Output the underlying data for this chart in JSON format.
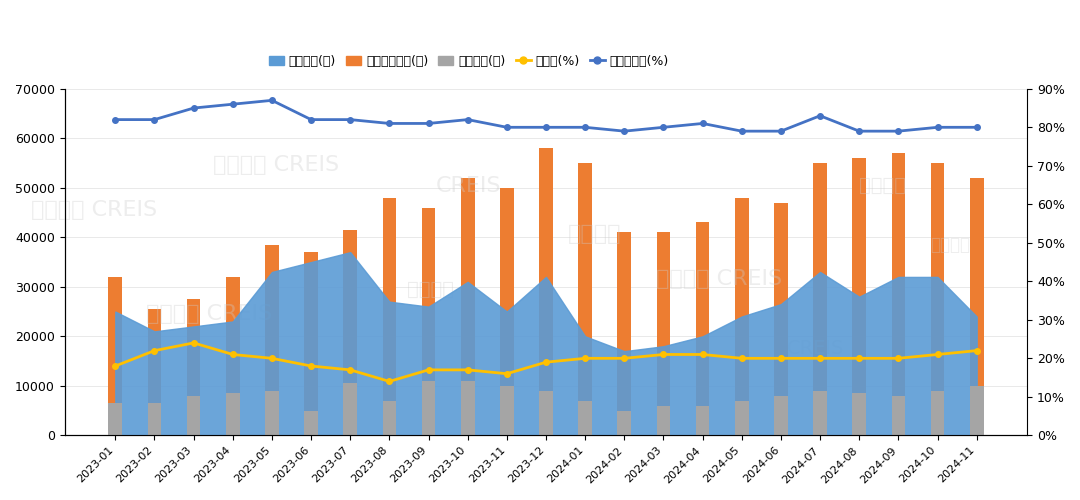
{
  "categories": [
    "2023-01",
    "2023-02",
    "2023-03",
    "2023-04",
    "2023-05",
    "2023-06",
    "2023-07",
    "2023-08",
    "2023-09",
    "2023-10",
    "2023-11",
    "2023-12",
    "2024-01",
    "2024-02",
    "2024-03",
    "2024-04",
    "2024-05",
    "2024-06",
    "2024-07",
    "2024-08",
    "2024-09",
    "2024-10",
    "2024-11"
  ],
  "new_listings": [
    25000,
    21000,
    22000,
    23000,
    33000,
    35000,
    37000,
    27000,
    26000,
    31000,
    25000,
    32000,
    20000,
    17000,
    18000,
    20000,
    24000,
    26500,
    33000,
    28000,
    32000,
    32000,
    24000
  ],
  "trade_stop": [
    32000,
    25500,
    27500,
    32000,
    38500,
    37000,
    41500,
    48000,
    46000,
    52000,
    50000,
    58000,
    55000,
    41000,
    41000,
    43000,
    48000,
    47000,
    55000,
    56000,
    57000,
    55000,
    52000
  ],
  "sold": [
    6500,
    6500,
    8000,
    8500,
    9000,
    5000,
    10500,
    7000,
    11000,
    11000,
    10000,
    9000,
    7000,
    5000,
    6000,
    6000,
    7000,
    8000,
    9000,
    8500,
    8000,
    9000,
    10000
  ],
  "clearance_rate": [
    18,
    22,
    24,
    21,
    20,
    18,
    17,
    14,
    17,
    17,
    16,
    19,
    20,
    20,
    21,
    21,
    20,
    20,
    20,
    20,
    20,
    21,
    22
  ],
  "deal_discount_rate": [
    82,
    82,
    85,
    86,
    87,
    82,
    82,
    81,
    81,
    82,
    80,
    80,
    80,
    79,
    80,
    81,
    79,
    79,
    83,
    79,
    79,
    80,
    80
  ],
  "left_ylim": [
    0,
    70000
  ],
  "left_yticks": [
    0,
    10000,
    20000,
    30000,
    40000,
    50000,
    60000,
    70000
  ],
  "right_ylim": [
    0,
    90
  ],
  "right_ytick_vals": [
    0,
    10,
    20,
    30,
    40,
    50,
    60,
    70,
    80,
    90
  ],
  "right_ytick_labels": [
    "0%",
    "10%",
    "20%",
    "30%",
    "40%",
    "50%",
    "60%",
    "70%",
    "80%",
    "90%"
  ],
  "color_new_listings": "#5B9BD5",
  "color_trade_stop": "#ED7D31",
  "color_sold": "#A5A5A5",
  "color_clearance": "#FFC000",
  "color_deal_discount": "#4472C4",
  "bg_color": "#FFFFFF",
  "legend_labels": [
    "新上拍品(件)",
    "交易截止拍品(件)",
    "成交拍品(件)",
    "清仓率(%)",
    "成交折价率(%)"
  ]
}
